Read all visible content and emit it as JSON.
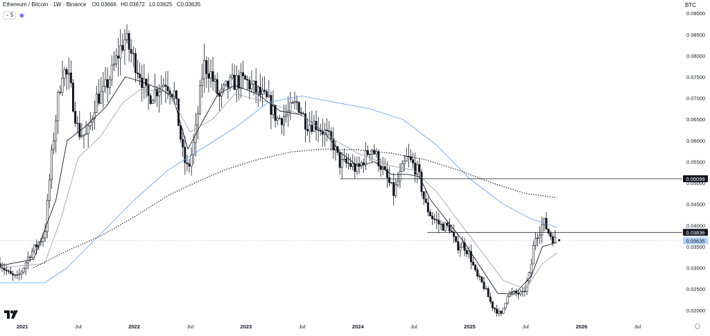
{
  "header": {
    "symbol": "Ethereum / Bitcoin · 1W · Binance",
    "open_label": "O",
    "open": "0.03666",
    "high_label": "H",
    "high": "0.03672",
    "low_label": "L",
    "low": "0.03625",
    "close_label": "C",
    "close": "0.03635"
  },
  "indicator": {
    "label": "5"
  },
  "currency": "BTC",
  "colors": {
    "candle": "#131722",
    "ma_fast": "#131722",
    "ma_mid": "#9598a1",
    "ma_slow": "#5b9cf6",
    "ma_dotted": "#131722",
    "label_dark": "#131722",
    "label_current": "#b2d2f7",
    "grid_text": "#131722"
  },
  "chart_data": {
    "type": "candlestick",
    "title": "Ethereum / Bitcoin · 1W · Binance",
    "ylim": [
      0.018,
      0.0915
    ],
    "y_ticks": [
      "0.09000",
      "0.08500",
      "0.08000",
      "0.07500",
      "0.07000",
      "0.06500",
      "0.06000",
      "0.05500",
      "0.05000",
      "0.04500",
      "0.04000",
      "0.03500",
      "0.03000",
      "0.02500",
      "0.02000"
    ],
    "x_ticks": [
      {
        "label": "2021",
        "t": 2021.0,
        "bold": true
      },
      {
        "label": "Jul",
        "t": 2021.5,
        "bold": false
      },
      {
        "label": "2022",
        "t": 2022.0,
        "bold": true
      },
      {
        "label": "Jul",
        "t": 2022.5,
        "bold": false
      },
      {
        "label": "2023",
        "t": 2023.0,
        "bold": true
      },
      {
        "label": "Jul",
        "t": 2023.5,
        "bold": false
      },
      {
        "label": "2024",
        "t": 2024.0,
        "bold": true
      },
      {
        "label": "Jul",
        "t": 2024.5,
        "bold": false
      },
      {
        "label": "2025",
        "t": 2025.0,
        "bold": true
      },
      {
        "label": "Jul",
        "t": 2025.5,
        "bold": false
      },
      {
        "label": "2026",
        "t": 2026.0,
        "bold": true
      },
      {
        "label": "Jul",
        "t": 2026.5,
        "bold": false
      }
    ],
    "xlim": [
      2020.8,
      2026.9
    ],
    "anchors": [
      [
        2020.8,
        0.031
      ],
      [
        2020.88,
        0.0285
      ],
      [
        2020.95,
        0.0275
      ],
      [
        2021.0,
        0.0295
      ],
      [
        2021.06,
        0.033
      ],
      [
        2021.12,
        0.035
      ],
      [
        2021.2,
        0.038
      ],
      [
        2021.26,
        0.056
      ],
      [
        2021.32,
        0.07
      ],
      [
        2021.36,
        0.077
      ],
      [
        2021.42,
        0.074
      ],
      [
        2021.5,
        0.062
      ],
      [
        2021.58,
        0.061
      ],
      [
        2021.66,
        0.07
      ],
      [
        2021.72,
        0.071
      ],
      [
        2021.8,
        0.076
      ],
      [
        2021.88,
        0.082
      ],
      [
        2021.92,
        0.084
      ],
      [
        2021.98,
        0.08
      ],
      [
        2022.05,
        0.076
      ],
      [
        2022.12,
        0.07
      ],
      [
        2022.2,
        0.072
      ],
      [
        2022.28,
        0.074
      ],
      [
        2022.36,
        0.071
      ],
      [
        2022.44,
        0.056
      ],
      [
        2022.48,
        0.053
      ],
      [
        2022.54,
        0.06
      ],
      [
        2022.62,
        0.078
      ],
      [
        2022.68,
        0.076
      ],
      [
        2022.76,
        0.07
      ],
      [
        2022.84,
        0.073
      ],
      [
        2022.92,
        0.074
      ],
      [
        2023.0,
        0.074
      ],
      [
        2023.1,
        0.0715
      ],
      [
        2023.2,
        0.069
      ],
      [
        2023.28,
        0.065
      ],
      [
        2023.36,
        0.066
      ],
      [
        2023.46,
        0.069
      ],
      [
        2023.54,
        0.064
      ],
      [
        2023.62,
        0.064
      ],
      [
        2023.7,
        0.062
      ],
      [
        2023.78,
        0.059
      ],
      [
        2023.84,
        0.0545
      ],
      [
        2023.92,
        0.0545
      ],
      [
        2024.0,
        0.053
      ],
      [
        2024.06,
        0.056
      ],
      [
        2024.12,
        0.0585
      ],
      [
        2024.18,
        0.0555
      ],
      [
        2024.26,
        0.051
      ],
      [
        2024.32,
        0.0475
      ],
      [
        2024.38,
        0.052
      ],
      [
        2024.44,
        0.056
      ],
      [
        2024.5,
        0.054
      ],
      [
        2024.54,
        0.0525
      ],
      [
        2024.6,
        0.045
      ],
      [
        2024.66,
        0.042
      ],
      [
        2024.74,
        0.04
      ],
      [
        2024.82,
        0.0395
      ],
      [
        2024.88,
        0.035
      ],
      [
        2024.94,
        0.0355
      ],
      [
        2025.0,
        0.033
      ],
      [
        2025.06,
        0.028
      ],
      [
        2025.12,
        0.026
      ],
      [
        2025.2,
        0.021
      ],
      [
        2025.28,
        0.0188
      ],
      [
        2025.34,
        0.024
      ],
      [
        2025.4,
        0.024
      ],
      [
        2025.48,
        0.0238
      ],
      [
        2025.54,
        0.029
      ],
      [
        2025.58,
        0.037
      ],
      [
        2025.63,
        0.039
      ],
      [
        2025.66,
        0.041
      ],
      [
        2025.7,
        0.0385
      ],
      [
        2025.74,
        0.037
      ],
      [
        2025.78,
        0.0363
      ]
    ],
    "seed": 7,
    "moving_averages": [
      {
        "name": "ma-fast",
        "points": [
          [
            2020.8,
            0.0305
          ],
          [
            2021.1,
            0.032
          ],
          [
            2021.3,
            0.046
          ],
          [
            2021.4,
            0.06
          ],
          [
            2021.55,
            0.063
          ],
          [
            2021.75,
            0.068
          ],
          [
            2021.92,
            0.075
          ],
          [
            2022.05,
            0.074
          ],
          [
            2022.25,
            0.072
          ],
          [
            2022.35,
            0.07
          ],
          [
            2022.48,
            0.058
          ],
          [
            2022.6,
            0.064
          ],
          [
            2022.75,
            0.071
          ],
          [
            2022.9,
            0.073
          ],
          [
            2023.1,
            0.071
          ],
          [
            2023.3,
            0.067
          ],
          [
            2023.5,
            0.066
          ],
          [
            2023.7,
            0.062
          ],
          [
            2023.85,
            0.057
          ],
          [
            2024.0,
            0.054
          ],
          [
            2024.15,
            0.055
          ],
          [
            2024.3,
            0.052
          ],
          [
            2024.45,
            0.052
          ],
          [
            2024.55,
            0.0515
          ],
          [
            2024.65,
            0.046
          ],
          [
            2024.8,
            0.041
          ],
          [
            2024.95,
            0.036
          ],
          [
            2025.1,
            0.03
          ],
          [
            2025.25,
            0.024
          ],
          [
            2025.4,
            0.0238
          ],
          [
            2025.55,
            0.028
          ],
          [
            2025.65,
            0.035
          ],
          [
            2025.78,
            0.036
          ]
        ]
      },
      {
        "name": "ma-mid",
        "points": [
          [
            2020.8,
            0.03
          ],
          [
            2021.2,
            0.031
          ],
          [
            2021.35,
            0.042
          ],
          [
            2021.5,
            0.056
          ],
          [
            2021.7,
            0.061
          ],
          [
            2021.9,
            0.069
          ],
          [
            2022.05,
            0.072
          ],
          [
            2022.3,
            0.0715
          ],
          [
            2022.5,
            0.062
          ],
          [
            2022.7,
            0.065
          ],
          [
            2022.9,
            0.071
          ],
          [
            2023.2,
            0.069
          ],
          [
            2023.5,
            0.066
          ],
          [
            2023.8,
            0.06
          ],
          [
            2024.0,
            0.057
          ],
          [
            2024.3,
            0.054
          ],
          [
            2024.5,
            0.053
          ],
          [
            2024.7,
            0.048
          ],
          [
            2024.9,
            0.041
          ],
          [
            2025.1,
            0.034
          ],
          [
            2025.3,
            0.027
          ],
          [
            2025.5,
            0.025
          ],
          [
            2025.65,
            0.031
          ],
          [
            2025.78,
            0.0335
          ]
        ]
      },
      {
        "name": "ma-slow",
        "points": [
          [
            2020.8,
            0.0265
          ],
          [
            2021.2,
            0.0265
          ],
          [
            2021.4,
            0.03
          ],
          [
            2021.7,
            0.038
          ],
          [
            2022.0,
            0.046
          ],
          [
            2022.3,
            0.053
          ],
          [
            2022.6,
            0.058
          ],
          [
            2022.9,
            0.063
          ],
          [
            2023.2,
            0.069
          ],
          [
            2023.5,
            0.0705
          ],
          [
            2023.8,
            0.069
          ],
          [
            2024.1,
            0.0675
          ],
          [
            2024.4,
            0.065
          ],
          [
            2024.7,
            0.059
          ],
          [
            2025.0,
            0.051
          ],
          [
            2025.3,
            0.045
          ],
          [
            2025.55,
            0.0415
          ],
          [
            2025.78,
            0.0395
          ]
        ]
      },
      {
        "name": "ma-dotted",
        "points": [
          [
            2021.1,
            0.03
          ],
          [
            2021.4,
            0.034
          ],
          [
            2021.7,
            0.0375
          ],
          [
            2022.0,
            0.042
          ],
          [
            2022.3,
            0.047
          ],
          [
            2022.5,
            0.0495
          ],
          [
            2022.8,
            0.053
          ],
          [
            2023.1,
            0.0555
          ],
          [
            2023.4,
            0.0573
          ],
          [
            2023.7,
            0.058
          ],
          [
            2024.0,
            0.0578
          ],
          [
            2024.3,
            0.057
          ],
          [
            2024.6,
            0.0555
          ],
          [
            2024.9,
            0.053
          ],
          [
            2025.2,
            0.05
          ],
          [
            2025.5,
            0.0475
          ],
          [
            2025.78,
            0.0465
          ]
        ]
      }
    ],
    "horizontal_lines": [
      {
        "name": "level-1",
        "y": 0.05099,
        "label": "0.05099",
        "x_start": 2023.84
      },
      {
        "name": "level-2",
        "y": 0.03836,
        "label": "0.03836",
        "x_start": 2024.62
      }
    ],
    "current_price": {
      "y": 0.03635,
      "label": "0.03635"
    }
  }
}
